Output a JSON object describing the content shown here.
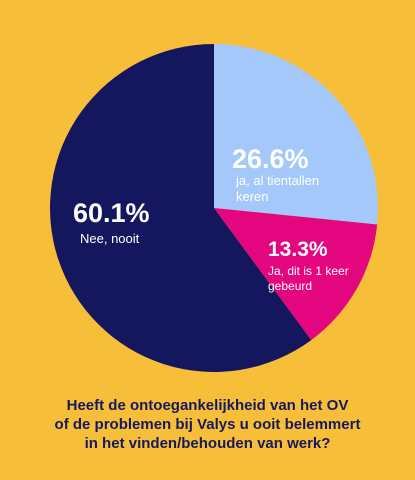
{
  "chart_data": {
    "type": "pie",
    "slices": [
      {
        "label": "Nee, nooit",
        "value": 60.1,
        "value_text": "60.1%",
        "color": "#15175E",
        "label_color": "#FFFFFF"
      },
      {
        "label": "ja, al tientallen keren",
        "value": 26.6,
        "value_text": "26.6%",
        "color": "#A3C8F9",
        "label_color": "#FFFFFF"
      },
      {
        "label": "Ja, dit is 1 keer gebeurd",
        "value": 13.3,
        "value_text": "13.3%",
        "color": "#E3067F",
        "label_color": "#FFFFFF"
      }
    ],
    "start_angle_deg": 0,
    "direction": "clockwise",
    "legend": "none"
  },
  "question": {
    "lines": [
      "Heeft de ontoegankelijkheid van het OV",
      "of de problemen bij Valys u ooit belemmert",
      "in het vinden/behouden van werk?"
    ]
  },
  "background_color": "#F7BE3A"
}
